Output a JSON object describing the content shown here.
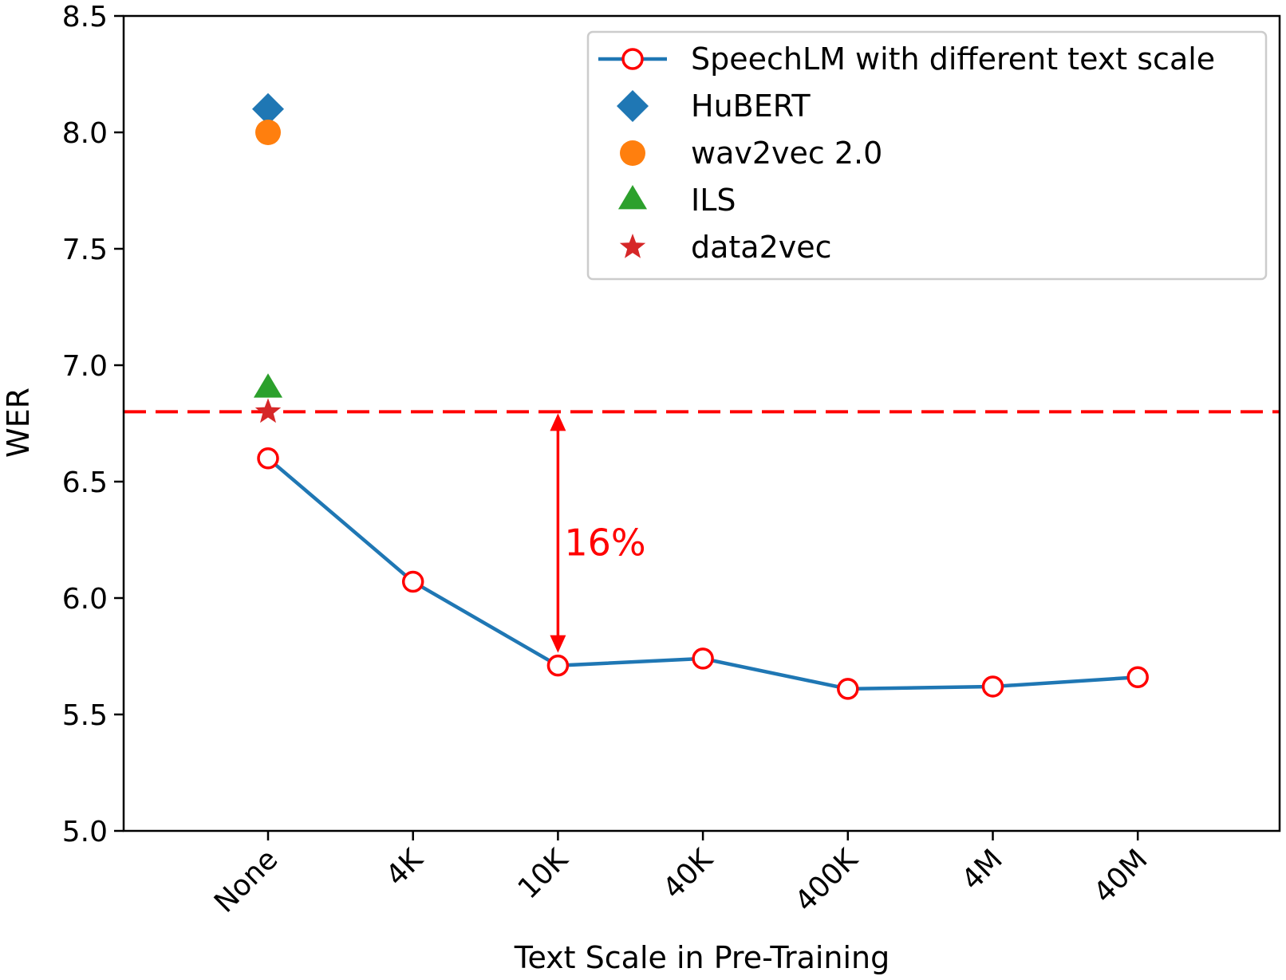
{
  "chart_data": {
    "type": "line",
    "xlabel": "Text Scale in Pre-Training",
    "ylabel": "WER",
    "categories": [
      "None",
      "4K",
      "10K",
      "40K",
      "400K",
      "4M",
      "40M"
    ],
    "ylim": [
      5.0,
      8.5
    ],
    "yticks": [
      "5.0",
      "5.5",
      "6.0",
      "6.5",
      "7.0",
      "7.5",
      "8.0",
      "8.5"
    ],
    "grid": false,
    "legend_position": "top-right",
    "series": [
      {
        "name": "SpeechLM with different text scale",
        "values": [
          6.6,
          6.07,
          5.71,
          5.74,
          5.61,
          5.62,
          5.66
        ],
        "line_color": "#1f77b4",
        "marker": "open-circle",
        "marker_color": "#ff0000"
      }
    ],
    "baselines": [
      {
        "name": "HuBERT",
        "category": "None",
        "value": 8.1,
        "marker": "diamond",
        "color": "#1f77b4"
      },
      {
        "name": "wav2vec 2.0",
        "category": "None",
        "value": 8.0,
        "marker": "circle",
        "color": "#ff7f0e"
      },
      {
        "name": "ILS",
        "category": "None",
        "value": 6.9,
        "marker": "triangle",
        "color": "#2ca02c"
      },
      {
        "name": "data2vec",
        "category": "None",
        "value": 6.8,
        "marker": "star",
        "color": "#d62728"
      }
    ],
    "reference_line": {
      "value": 6.8,
      "style": "dashed",
      "color": "#ff0000"
    },
    "annotation": {
      "text": "16%",
      "category": "10K",
      "from": 6.8,
      "to": 5.71,
      "color": "#ff0000"
    }
  }
}
